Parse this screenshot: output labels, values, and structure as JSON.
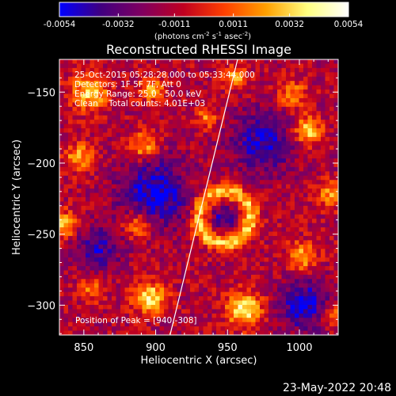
{
  "colorbar": {
    "min": -0.0054,
    "max": 0.0054,
    "tick_labels": [
      "-0.0054",
      "-0.0032",
      "-0.0011",
      "0.0011",
      "0.0032",
      "0.0054"
    ],
    "tick_values": [
      -0.0054,
      -0.0032,
      -0.0011,
      0.0011,
      0.0032,
      0.0054
    ],
    "units_main": "(photons cm",
    "units_sup1": "-2",
    "units_mid": " s",
    "units_sup2": "-1",
    "units_mid2": " asec",
    "units_sup3": "-2",
    "units_end": ")",
    "colormap": [
      "#0000ff",
      "#400080",
      "#800060",
      "#c00020",
      "#ff4000",
      "#ffa000",
      "#ffff80",
      "#ffffff"
    ]
  },
  "plot": {
    "title": "Reconstructed RHESSI Image",
    "xlabel": "Heliocentric X (arcsec)",
    "ylabel": "Heliocentric Y (arcsec)"
  },
  "annotations": {
    "time_range": "25-Oct-2015 05:28:28.000 to 05:33:44.000",
    "detectors": "Detectors: 1F 5F 7F, Att 0",
    "energy_range": "Energy Range: 25.0 - 50.0 keV",
    "clean_counts": "Clean    Total counts: 4.01E+03",
    "peak_position": "Position of Peak = [940,-308]"
  },
  "footer": {
    "date": "23-May-2022 20:48"
  },
  "chart_data": {
    "type": "heatmap",
    "title": "Reconstructed RHESSI Image",
    "xlabel": "Heliocentric X (arcsec)",
    "ylabel": "Heliocentric Y (arcsec)",
    "xlim": [
      833,
      1027
    ],
    "ylim": [
      -321,
      -127
    ],
    "x_ticks": [
      850,
      900,
      950,
      1000
    ],
    "y_ticks": [
      -150,
      -200,
      -250,
      -300
    ],
    "x_tick_labels": [
      "850",
      "900",
      "950",
      "1000"
    ],
    "y_tick_labels": [
      "−150",
      "−200",
      "−250",
      "−300"
    ],
    "color_range": [
      -0.0054,
      0.0054
    ],
    "limb_line": [
      [
        910,
        -321
      ],
      [
        957,
        -127
      ]
    ],
    "peak": [
      940,
      -308
    ],
    "features": [
      {
        "kind": "ring",
        "x": 948,
        "y": -238,
        "r_inner": 10,
        "r_outer": 26,
        "amp": 0.0042
      },
      {
        "kind": "blob",
        "x": 854,
        "y": -150,
        "r": 13,
        "amp": 0.0044
      },
      {
        "kind": "blob",
        "x": 897,
        "y": -148,
        "r": 9,
        "amp": 0.0034
      },
      {
        "kind": "blob",
        "x": 955,
        "y": -140,
        "r": 8,
        "amp": 0.0038
      },
      {
        "kind": "blob",
        "x": 936,
        "y": -168,
        "r": 7,
        "amp": 0.0034
      },
      {
        "kind": "blob",
        "x": 995,
        "y": -152,
        "r": 10,
        "amp": 0.0032
      },
      {
        "kind": "blob",
        "x": 1006,
        "y": -177,
        "r": 10,
        "amp": 0.0046
      },
      {
        "kind": "blob",
        "x": 892,
        "y": -188,
        "r": 10,
        "amp": 0.004
      },
      {
        "kind": "blob",
        "x": 847,
        "y": -196,
        "r": 10,
        "amp": 0.0036
      },
      {
        "kind": "blob",
        "x": 1022,
        "y": -222,
        "r": 9,
        "amp": 0.0034
      },
      {
        "kind": "blob",
        "x": 837,
        "y": -243,
        "r": 9,
        "amp": 0.004
      },
      {
        "kind": "blob",
        "x": 887,
        "y": -244,
        "r": 10,
        "amp": 0.0032
      },
      {
        "kind": "blob",
        "x": 856,
        "y": -288,
        "r": 8,
        "amp": 0.003
      },
      {
        "kind": "blob",
        "x": 1002,
        "y": -266,
        "r": 10,
        "amp": 0.004
      },
      {
        "kind": "blob",
        "x": 896,
        "y": -295,
        "r": 11,
        "amp": 0.005
      },
      {
        "kind": "blob",
        "x": 962,
        "y": -303,
        "r": 12,
        "amp": 0.0054
      },
      {
        "kind": "blob",
        "x": 1022,
        "y": -307,
        "r": 9,
        "amp": 0.0036
      },
      {
        "kind": "blob",
        "x": 925,
        "y": -212,
        "r": 6,
        "amp": 0.002
      },
      {
        "kind": "negative",
        "x": 900,
        "y": -220,
        "r": 25,
        "amp": -0.0038
      },
      {
        "kind": "negative",
        "x": 975,
        "y": -185,
        "r": 22,
        "amp": -0.0034
      },
      {
        "kind": "negative",
        "x": 1005,
        "y": -300,
        "r": 18,
        "amp": -0.004
      },
      {
        "kind": "negative",
        "x": 860,
        "y": -260,
        "r": 16,
        "amp": -0.003
      }
    ]
  }
}
